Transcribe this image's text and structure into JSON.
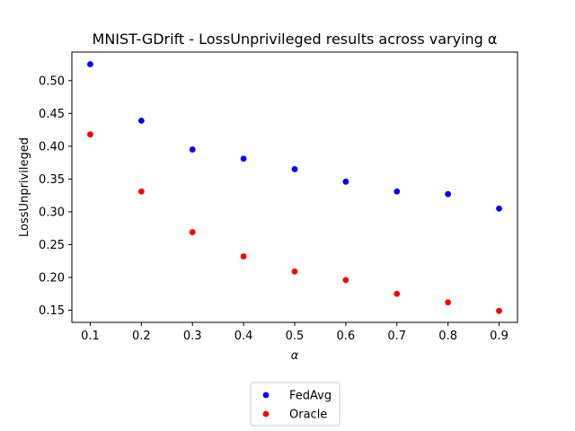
{
  "chart_data": {
    "type": "scatter",
    "title": "MNIST-GDrift - LossUnprivileged results across varying α",
    "xlabel": "α",
    "ylabel": "LossUnprivileged",
    "xlim": [
      0.064,
      0.936
    ],
    "ylim": [
      0.1315,
      0.5435
    ],
    "x_ticks": [
      0.1,
      0.2,
      0.3,
      0.4,
      0.5,
      0.6,
      0.7,
      0.8,
      0.9
    ],
    "x_tick_labels": [
      "0.1",
      "0.2",
      "0.3",
      "0.4",
      "0.5",
      "0.6",
      "0.7",
      "0.8",
      "0.9"
    ],
    "y_ticks": [
      0.15,
      0.2,
      0.25,
      0.3,
      0.35,
      0.4,
      0.45,
      0.5
    ],
    "y_tick_labels": [
      "0.15",
      "0.20",
      "0.25",
      "0.30",
      "0.35",
      "0.40",
      "0.45",
      "0.50"
    ],
    "grid": false,
    "legend_position": "below plot, center",
    "x": [
      0.1,
      0.2,
      0.3,
      0.4,
      0.5,
      0.6,
      0.7,
      0.8,
      0.9
    ],
    "series": [
      {
        "name": "FedAvg",
        "color": "#0000ff",
        "values": [
          0.525,
          0.439,
          0.395,
          0.381,
          0.365,
          0.346,
          0.331,
          0.327,
          0.305
        ]
      },
      {
        "name": "Oracle",
        "color": "#ff0000",
        "values": [
          0.418,
          0.331,
          0.269,
          0.232,
          0.209,
          0.196,
          0.175,
          0.162,
          0.149
        ]
      }
    ]
  }
}
